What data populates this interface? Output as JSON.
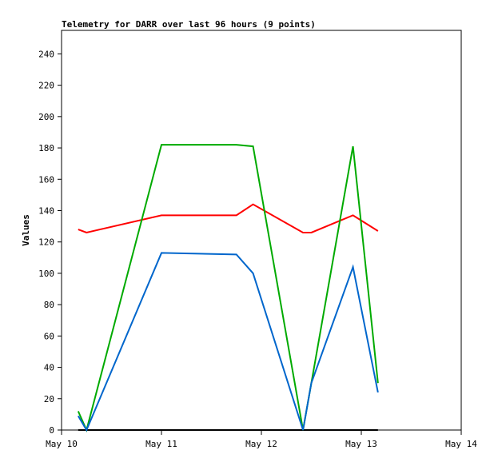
{
  "chart_data": {
    "type": "line",
    "title": "Telemetry for DARR over last 96 hours (9 points)",
    "xlabel": "",
    "ylabel": "Values",
    "x_unit": "hours since May 10 00:00",
    "xlim": [
      0,
      96
    ],
    "ylim": [
      0,
      255
    ],
    "x_ticks": [
      {
        "label": "May 10",
        "value": 0
      },
      {
        "label": "May 11",
        "value": 24
      },
      {
        "label": "May 12",
        "value": 48
      },
      {
        "label": "May 13",
        "value": 72
      },
      {
        "label": "May 14",
        "value": 96
      }
    ],
    "y_ticks": [
      0,
      20,
      40,
      60,
      80,
      100,
      120,
      140,
      160,
      180,
      200,
      220,
      240
    ],
    "grid": false,
    "x": [
      4,
      6,
      24,
      42,
      46,
      58,
      60,
      70,
      76
    ],
    "series": [
      {
        "name": "black",
        "color": "#000000",
        "values": [
          0,
          0,
          0,
          0,
          0,
          0,
          0,
          0,
          0
        ]
      },
      {
        "name": "red",
        "color": "#ff0000",
        "values": [
          128,
          126,
          137,
          137,
          144,
          126,
          126,
          137,
          127
        ]
      },
      {
        "name": "green",
        "color": "#00aa00",
        "values": [
          12,
          0,
          182,
          182,
          181,
          0,
          30,
          181,
          30
        ]
      },
      {
        "name": "blue",
        "color": "#0066cc",
        "values": [
          9,
          0,
          113,
          112,
          100,
          0,
          30,
          104,
          24
        ]
      }
    ]
  }
}
